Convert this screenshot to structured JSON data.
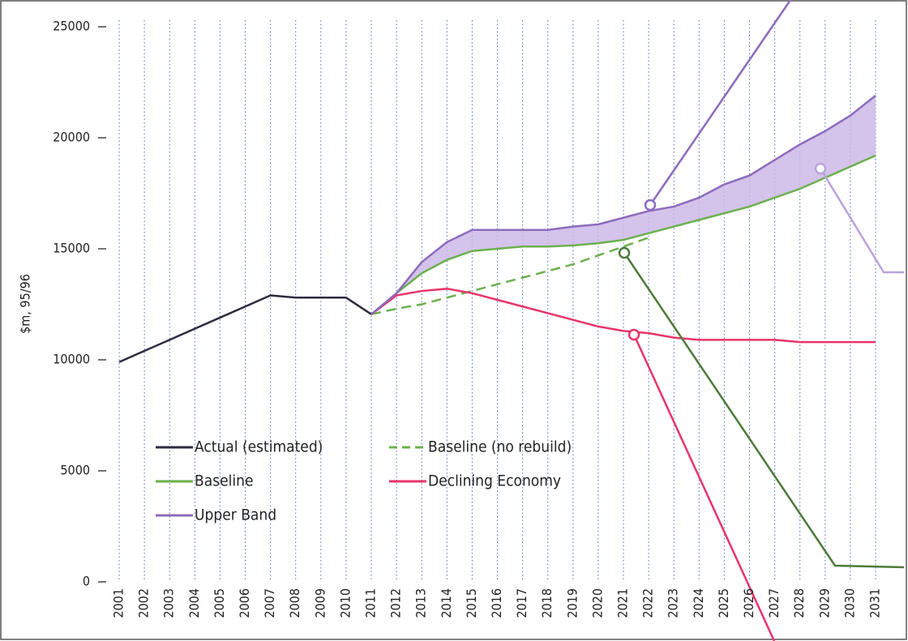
{
  "chart_data": {
    "type": "line",
    "y_label": "$m, 95/96",
    "categories": [
      "2001",
      "2002",
      "2003",
      "2004",
      "2005",
      "2006",
      "2007",
      "2008",
      "2009",
      "2010",
      "2011",
      "2012",
      "2013",
      "2014",
      "2015",
      "2016",
      "2017",
      "2018",
      "2019",
      "2020",
      "2021",
      "2022",
      "2023",
      "2024",
      "2025",
      "2026",
      "2027",
      "2028",
      "2029",
      "2030",
      "2031"
    ],
    "ylim": [
      0,
      25000
    ],
    "yticks": [
      0,
      5000,
      10000,
      15000,
      20000,
      25000
    ],
    "grid": true,
    "series": [
      {
        "name": "Actual (estimated)",
        "color": "#2e2b3f",
        "dashed": false,
        "values": [
          9900,
          10400,
          10900,
          11400,
          11900,
          12400,
          12900,
          12800,
          12800,
          12800,
          12050,
          null,
          null,
          null,
          null,
          null,
          null,
          null,
          null,
          null,
          null,
          null,
          null,
          null,
          null,
          null,
          null,
          null,
          null,
          null,
          null
        ]
      },
      {
        "name": "Baseline (no rebuild)",
        "color": "#6cb04e",
        "dashed": true,
        "values": [
          null,
          null,
          null,
          null,
          null,
          null,
          null,
          null,
          null,
          null,
          12050,
          12300,
          12500,
          12800,
          13100,
          13400,
          13700,
          14000,
          14300,
          14700,
          15100,
          15500,
          null,
          null,
          null,
          null,
          null,
          null,
          null,
          null,
          null
        ]
      },
      {
        "name": "Baseline",
        "color": "#6cb04e",
        "dashed": false,
        "values": [
          null,
          null,
          null,
          null,
          null,
          null,
          null,
          null,
          null,
          null,
          12050,
          13000,
          13900,
          14500,
          14900,
          15000,
          15100,
          15100,
          15150,
          15250,
          15400,
          15700,
          16000,
          16300,
          16600,
          16900,
          17300,
          17700,
          18200,
          18700,
          19200
        ]
      },
      {
        "name": "Declining Economy",
        "color": "#e8346a",
        "dashed": false,
        "values": [
          null,
          null,
          null,
          null,
          null,
          null,
          null,
          null,
          null,
          null,
          12050,
          12900,
          13100,
          13200,
          13000,
          12700,
          12400,
          12100,
          11800,
          11500,
          11300,
          11200,
          11000,
          10900,
          10900,
          10900,
          10900,
          10800,
          10800,
          10800,
          10800
        ]
      },
      {
        "name": "Upper Band",
        "color": "#8d6bbd",
        "dashed": false,
        "values": [
          null,
          null,
          null,
          null,
          null,
          null,
          null,
          null,
          null,
          null,
          12050,
          13000,
          14400,
          15300,
          15850,
          15850,
          15850,
          15850,
          16000,
          16100,
          16400,
          16700,
          16900,
          17300,
          17900,
          18300,
          19000,
          19700,
          20300,
          21000,
          21900
        ]
      }
    ]
  }
}
